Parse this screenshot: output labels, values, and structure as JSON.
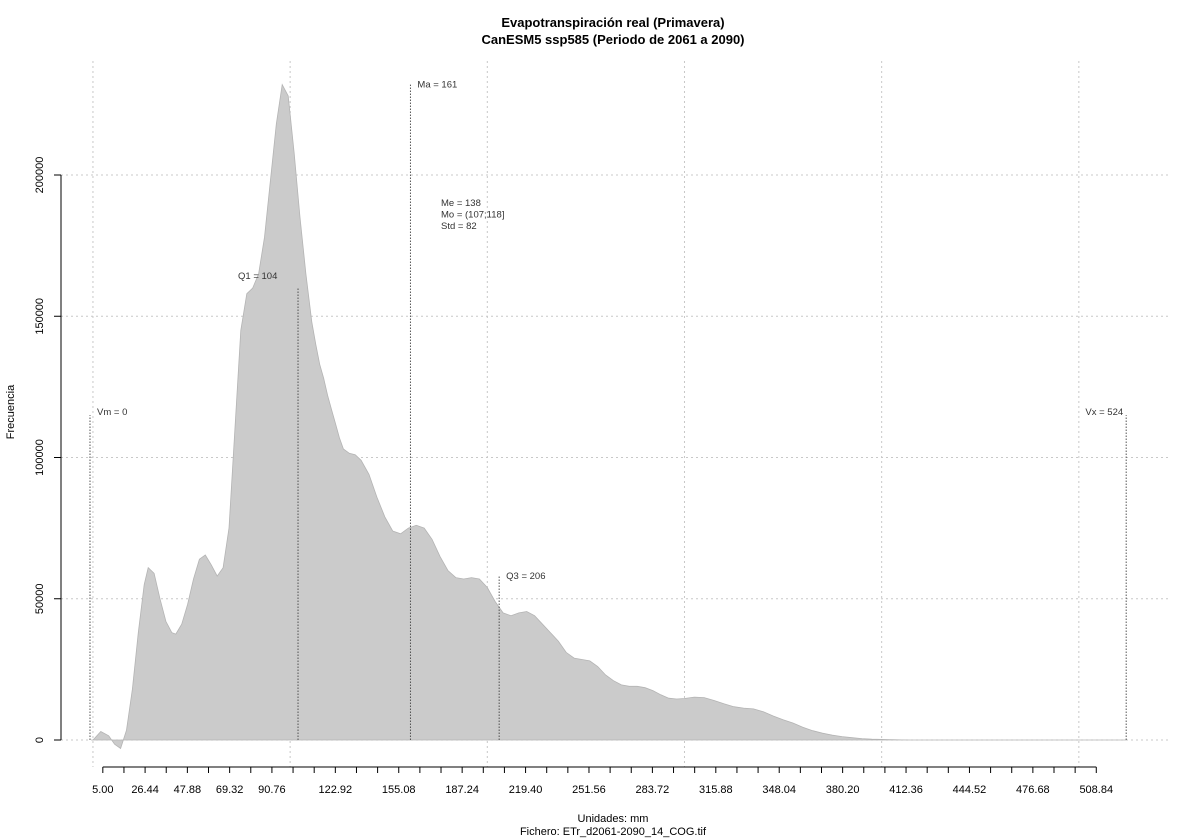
{
  "chart_data": {
    "type": "area",
    "title": "Evapotranspiración real (Primavera)",
    "subtitle": "CanESM5 ssp585 (Periodo de 2061 a 2090)",
    "xlabel": "Unidades: mm",
    "caption": "Fichero: ETr_d2061-2090_14_COG.tif",
    "ylabel": "Frecuencia",
    "xlim": [
      -1.5,
      530
    ],
    "ylim": [
      -9000,
      240000
    ],
    "grid": true,
    "x_ticks": [
      5,
      15.72,
      26.44,
      37.16,
      47.88,
      58.6,
      69.32,
      80.04,
      90.76,
      101.48,
      112.2,
      122.92,
      133.64,
      144.36,
      155.08,
      165.8,
      176.52,
      187.24,
      197.96,
      208.68,
      219.4,
      230.12,
      240.84,
      251.56,
      262.28,
      273,
      283.72,
      294.44,
      305.16,
      315.88,
      326.6,
      337.32,
      348.04,
      358.76,
      369.48,
      380.2,
      390.92,
      401.64,
      412.36,
      423.08,
      433.8,
      444.52,
      455.24,
      465.96,
      476.68,
      487.4,
      498.12,
      508.84
    ],
    "x_tick_labels": [
      "5.00",
      "26.44",
      "47.88",
      "69.32",
      "90.76",
      "122.92",
      "155.08",
      "187.24",
      "219.40",
      "251.56",
      "283.72",
      "315.88",
      "348.04",
      "380.20",
      "412.36",
      "444.52",
      "476.68",
      "508.84"
    ],
    "x_tick_label_values": [
      5,
      26.44,
      47.88,
      69.32,
      90.76,
      122.92,
      155.08,
      187.24,
      219.4,
      251.56,
      283.72,
      315.88,
      348.04,
      380.2,
      412.36,
      444.52,
      476.68,
      508.84
    ],
    "x_grid": [
      0,
      100,
      200,
      300,
      400,
      500
    ],
    "y_ticks": [
      0,
      50000,
      100000,
      150000,
      200000
    ],
    "y_tick_labels": [
      "0",
      "50000",
      "100000",
      "150000",
      "200000"
    ],
    "series": [
      {
        "x": [
          0,
          4,
          8,
          11,
          14,
          17,
          20,
          23,
          26,
          28,
          31,
          34,
          37,
          40,
          42,
          45,
          48,
          51,
          54,
          57,
          60,
          63,
          66,
          69,
          72,
          75,
          78,
          81,
          84,
          87,
          90,
          93,
          96,
          99,
          102,
          105,
          108,
          111,
          113,
          115,
          117,
          119,
          121,
          123,
          125,
          127,
          130,
          133,
          136,
          140,
          144,
          148,
          152,
          156,
          160,
          164,
          168,
          172,
          176,
          180,
          184,
          188,
          192,
          196,
          200,
          204,
          208,
          212,
          216,
          220,
          224,
          228,
          232,
          236,
          240,
          244,
          248,
          252,
          256,
          260,
          264,
          268,
          272,
          276,
          280,
          284,
          288,
          292,
          296,
          300,
          305,
          310,
          315,
          320,
          325,
          330,
          335,
          340,
          345,
          350,
          355,
          360,
          365,
          370,
          375,
          380,
          385,
          390,
          395,
          400,
          405,
          410,
          415,
          420,
          425,
          430,
          435,
          440,
          445,
          450,
          460,
          470,
          480,
          490,
          500,
          510,
          520,
          524
        ],
        "y": [
          0,
          3000,
          1500,
          -1500,
          -3000,
          3500,
          18000,
          38000,
          55000,
          61000,
          59000,
          50000,
          42000,
          38000,
          37500,
          41000,
          48000,
          57000,
          64000,
          65500,
          62000,
          58000,
          61000,
          75000,
          110000,
          145000,
          158000,
          160000,
          165000,
          178000,
          198000,
          218000,
          232000,
          228000,
          208000,
          185000,
          165000,
          148000,
          140000,
          133000,
          128000,
          122000,
          117000,
          112000,
          107000,
          103000,
          101500,
          101000,
          99000,
          94000,
          86000,
          79000,
          74000,
          73000,
          75000,
          76000,
          75000,
          71000,
          65000,
          60000,
          57500,
          57000,
          57500,
          57000,
          54000,
          49000,
          45000,
          44000,
          45000,
          45500,
          44000,
          41000,
          38000,
          35000,
          31000,
          29000,
          28500,
          28000,
          26000,
          23000,
          21000,
          19500,
          19000,
          19000,
          18500,
          17500,
          16000,
          14800,
          14500,
          14700,
          15200,
          15000,
          14000,
          12800,
          11800,
          11300,
          11000,
          10000,
          8500,
          7200,
          6000,
          4500,
          3300,
          2400,
          1700,
          1200,
          800,
          500,
          300,
          200,
          100,
          50,
          0,
          0,
          0,
          0,
          0,
          0,
          0,
          0,
          0,
          0,
          0,
          0,
          0,
          0,
          0,
          0
        ]
      }
    ],
    "markers": [
      {
        "label": "Vm = 0",
        "x": -1.5,
        "y_top": 115000
      },
      {
        "label": "Q1 = 104",
        "x": 104,
        "y_top": 160000
      },
      {
        "label": "Ma = 161",
        "x": 161,
        "y_top": 232000
      },
      {
        "label": "Q3 = 206",
        "x": 206,
        "y_top": 58000
      },
      {
        "label": "Vx = 524",
        "x": 524,
        "y_top": 115000
      }
    ],
    "stats": [
      "Me = 138",
      "Mo = (107;118]",
      "Std = 82"
    ]
  }
}
